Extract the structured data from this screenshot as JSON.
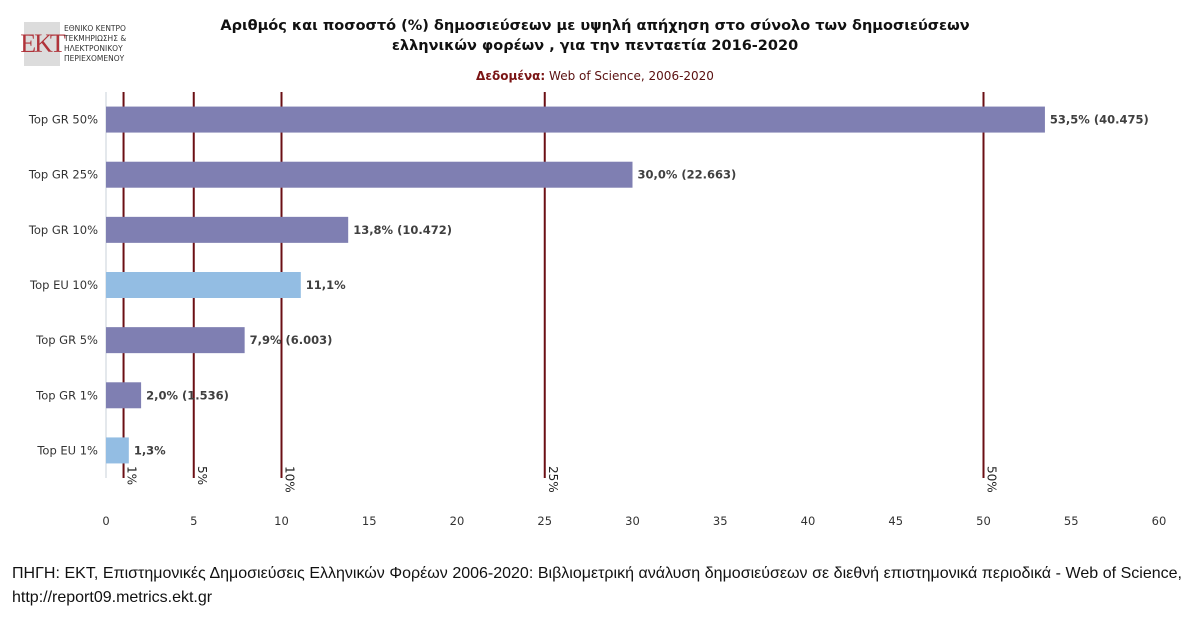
{
  "logo": {
    "mark": "ΕΚΤ",
    "lines": [
      "ΕΘΝΙΚΟ ΚΕΝΤΡΟ",
      "ΤΕΚΜΗΡΙΩΣΗΣ &",
      "ΗΛΕΚΤΡΟΝΙΚΟΥ",
      "ΠΕΡΙΕΧΟΜΕΝΟΥ"
    ]
  },
  "source": "ΠΗΓΗ: ΕΚΤ, Επιστημονικές Δημοσιεύσεις Ελληνικών Φορέων 2006-2020: Βιβλιομετρική ανάλυση δημοσιεύσεων σε διεθνή επιστημονικά περιοδικά - Web of Science, http://report09.metrics.ekt.gr",
  "chart_data": {
    "type": "bar",
    "orientation": "horizontal",
    "title_lines": [
      "Αριθμός και ποσοστό (%) δημοσιεύσεων με υψηλή απήχηση στο σύνολο των δημοσιεύσεων",
      "ελληνικών φορέων , για την πενταετία 2016-2020"
    ],
    "subtitle_label": "Δεδομένα:",
    "subtitle_value": " Web of Science, 2006-2020",
    "categories": [
      "Top GR 50%",
      "Top GR 25%",
      "Top GR 10%",
      "Top EU 10%",
      "Top GR 5%",
      "Top GR 1%",
      "Top EU 1%"
    ],
    "values": [
      53.5,
      30.0,
      13.8,
      11.1,
      7.9,
      2.0,
      1.3
    ],
    "data_labels": [
      "53,5% (40.475)",
      "30,0% (22.663)",
      "13,8% (10.472)",
      "11,1%",
      "7,9% (6.003)",
      "2,0% (1.536)",
      "1,3%"
    ],
    "bar_colors": [
      "#7f7fb2",
      "#7f7fb2",
      "#7f7fb2",
      "#93bde3",
      "#7f7fb2",
      "#7f7fb2",
      "#93bde3"
    ],
    "reference_lines": [
      {
        "value": 1,
        "label": "1%"
      },
      {
        "value": 5,
        "label": "5%"
      },
      {
        "value": 10,
        "label": "10%"
      },
      {
        "value": 25,
        "label": "25%"
      },
      {
        "value": 50,
        "label": "50%"
      }
    ],
    "reference_color": "#6b0f14",
    "xlim": [
      0,
      60
    ],
    "xticks": [
      0,
      5,
      10,
      15,
      20,
      25,
      30,
      35,
      40,
      45,
      50,
      55,
      60
    ],
    "grid": false
  }
}
